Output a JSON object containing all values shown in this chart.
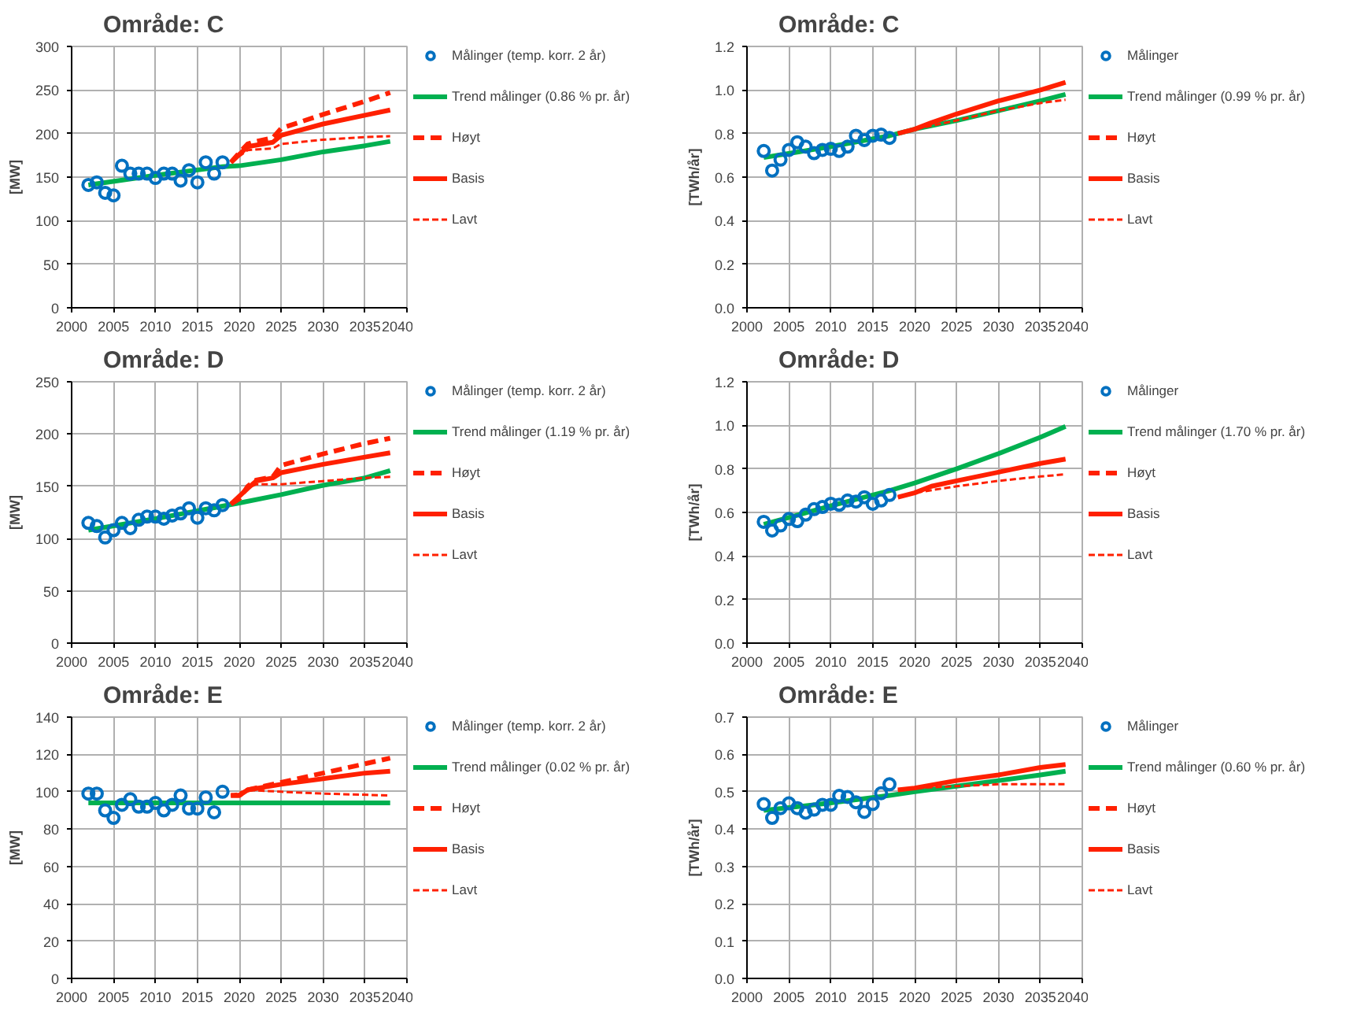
{
  "chart_data": [
    {
      "type": "line",
      "title": "Område: C",
      "ylabel": "[MW]",
      "xlim": [
        2000,
        2040
      ],
      "xticks": [
        2000,
        2005,
        2010,
        2015,
        2020,
        2025,
        2030,
        2035,
        2040
      ],
      "ylim": [
        0,
        300
      ],
      "yticks": [
        0,
        50,
        100,
        150,
        200,
        250,
        300
      ],
      "grid": true,
      "legend": "right",
      "series": [
        {
          "name": "Målinger (temp. korr. 2 år)",
          "type": "scatter",
          "marker": "circle",
          "color": "#0070c0",
          "x": [
            2002,
            2003,
            2004,
            2005,
            2006,
            2007,
            2008,
            2009,
            2010,
            2011,
            2012,
            2013,
            2014,
            2015,
            2016,
            2017,
            2018
          ],
          "values": [
            141,
            144,
            132,
            129,
            163,
            154,
            154,
            154,
            149,
            154,
            154,
            146,
            158,
            144,
            167,
            154,
            167
          ]
        },
        {
          "name": "Trend målinger (0.86 % pr. år)",
          "line_style": "solid",
          "color": "#00b050",
          "x": [
            2002,
            2010,
            2018,
            2020,
            2025,
            2030,
            2035,
            2038
          ],
          "values": [
            141,
            152,
            162,
            163,
            170,
            179,
            186,
            191
          ]
        },
        {
          "name": "Høyt",
          "line_style": "dashed",
          "color": "#ff2000",
          "x": [
            2019,
            2020,
            2021,
            2022,
            2024,
            2025,
            2030,
            2035,
            2038
          ],
          "values": [
            167,
            178,
            188,
            191,
            195,
            206,
            222,
            237,
            247
          ]
        },
        {
          "name": "Basis",
          "line_style": "solid",
          "color": "#ff2000",
          "x": [
            2019,
            2021,
            2024,
            2025,
            2030,
            2035,
            2038
          ],
          "values": [
            167,
            185,
            190,
            198,
            211,
            221,
            227
          ]
        },
        {
          "name": "Lavt",
          "line_style": "dotted",
          "color": "#ff2000",
          "x": [
            2019,
            2021,
            2024,
            2025,
            2030,
            2035,
            2038
          ],
          "values": [
            167,
            181,
            183,
            188,
            193,
            196,
            197
          ]
        }
      ]
    },
    {
      "type": "line",
      "title": "Område: C",
      "ylabel": "[TWh/år]",
      "xlim": [
        2000,
        2040
      ],
      "xticks": [
        2000,
        2005,
        2010,
        2015,
        2020,
        2025,
        2030,
        2035,
        2040
      ],
      "ylim": [
        0,
        1.2
      ],
      "yticks": [
        {
          "value": 0,
          "label": "0.0"
        },
        {
          "value": 0.2,
          "label": "0.2"
        },
        {
          "value": 0.4,
          "label": "0.4"
        },
        {
          "value": 0.6,
          "label": "0.6"
        },
        {
          "value": 0.8,
          "label": "0.8"
        },
        {
          "value": 1,
          "label": "1.0"
        },
        {
          "value": 1.2,
          "label": "1.2"
        }
      ],
      "grid": true,
      "legend": "right",
      "series": [
        {
          "name": "Målinger",
          "type": "scatter",
          "marker": "circle",
          "color": "#0070c0",
          "x": [
            2002,
            2003,
            2004,
            2005,
            2006,
            2007,
            2008,
            2009,
            2010,
            2011,
            2012,
            2013,
            2014,
            2015,
            2016,
            2017
          ],
          "values": [
            0.72,
            0.63,
            0.68,
            0.725,
            0.76,
            0.74,
            0.71,
            0.725,
            0.73,
            0.72,
            0.74,
            0.79,
            0.77,
            0.79,
            0.795,
            0.78
          ]
        },
        {
          "name": "Trend målinger (0.99 % pr. år)",
          "line_style": "solid",
          "color": "#00b050",
          "x": [
            2002,
            2010,
            2017,
            2020,
            2025,
            2030,
            2035,
            2038
          ],
          "values": [
            0.69,
            0.74,
            0.79,
            0.82,
            0.86,
            0.905,
            0.95,
            0.98
          ]
        },
        {
          "name": "Høyt",
          "line_style": "dashed",
          "color": "#ff2000"
        },
        {
          "name": "Basis",
          "line_style": "solid",
          "color": "#ff2000",
          "x": [
            2018,
            2020,
            2022,
            2025,
            2030,
            2035,
            2038
          ],
          "values": [
            0.8,
            0.82,
            0.85,
            0.89,
            0.95,
            1.0,
            1.035
          ]
        },
        {
          "name": "Lavt",
          "line_style": "dotted",
          "color": "#ff2000",
          "x": [
            2018,
            2020,
            2025,
            2030,
            2035,
            2038
          ],
          "values": [
            0.8,
            0.82,
            0.86,
            0.905,
            0.94,
            0.955
          ]
        }
      ]
    },
    {
      "type": "line",
      "title": "Område: D",
      "ylabel": "[MW]",
      "xlim": [
        2000,
        2040
      ],
      "xticks": [
        2000,
        2005,
        2010,
        2015,
        2020,
        2025,
        2030,
        2035,
        2040
      ],
      "ylim": [
        0,
        250
      ],
      "yticks": [
        0,
        50,
        100,
        150,
        200,
        250
      ],
      "grid": true,
      "legend": "right",
      "series": [
        {
          "name": "Målinger (temp. korr. 2 år)",
          "type": "scatter",
          "marker": "circle",
          "color": "#0070c0",
          "x": [
            2002,
            2003,
            2004,
            2005,
            2006,
            2007,
            2008,
            2009,
            2010,
            2011,
            2012,
            2013,
            2014,
            2015,
            2016,
            2017,
            2018
          ],
          "values": [
            115,
            112,
            101,
            108,
            115,
            110,
            118,
            121,
            121,
            119,
            122,
            124,
            129,
            120,
            129,
            127,
            132
          ]
        },
        {
          "name": "Trend målinger (1.19 % pr. år)",
          "line_style": "solid",
          "color": "#00b050",
          "x": [
            2002,
            2010,
            2018,
            2020,
            2025,
            2030,
            2035,
            2038
          ],
          "values": [
            108,
            119,
            131,
            134,
            142,
            151,
            158,
            165
          ]
        },
        {
          "name": "Høyt",
          "line_style": "dashed",
          "color": "#ff2000",
          "x": [
            2019,
            2020,
            2021,
            2022,
            2024,
            2025,
            2030,
            2035,
            2038
          ],
          "values": [
            133,
            138,
            150,
            156,
            159,
            170,
            181,
            191,
            196
          ]
        },
        {
          "name": "Basis",
          "line_style": "solid",
          "color": "#ff2000",
          "x": [
            2019,
            2021,
            2022,
            2024,
            2025,
            2030,
            2035,
            2038
          ],
          "values": [
            133,
            148,
            155,
            158,
            163,
            171,
            178,
            182
          ]
        },
        {
          "name": "Lavt",
          "line_style": "dotted",
          "color": "#ff2000",
          "x": [
            2019,
            2021,
            2022,
            2025,
            2030,
            2035,
            2038
          ],
          "values": [
            133,
            148,
            152,
            152,
            155,
            158,
            159
          ]
        }
      ]
    },
    {
      "type": "line",
      "title": "Område: D",
      "ylabel": "[TWh/år]",
      "xlim": [
        2000,
        2040
      ],
      "xticks": [
        2000,
        2005,
        2010,
        2015,
        2020,
        2025,
        2030,
        2035,
        2040
      ],
      "ylim": [
        0,
        1.2
      ],
      "yticks": [
        {
          "value": 0,
          "label": "0.0"
        },
        {
          "value": 0.2,
          "label": "0.2"
        },
        {
          "value": 0.4,
          "label": "0.4"
        },
        {
          "value": 0.6,
          "label": "0.6"
        },
        {
          "value": 0.8,
          "label": "0.8"
        },
        {
          "value": 1,
          "label": "1.0"
        },
        {
          "value": 1.2,
          "label": "1.2"
        }
      ],
      "grid": true,
      "legend": "right",
      "series": [
        {
          "name": "Målinger",
          "type": "scatter",
          "marker": "circle",
          "color": "#0070c0",
          "x": [
            2002,
            2003,
            2004,
            2005,
            2006,
            2007,
            2008,
            2009,
            2010,
            2011,
            2012,
            2013,
            2014,
            2015,
            2016,
            2017
          ],
          "values": [
            0.557,
            0.517,
            0.54,
            0.57,
            0.56,
            0.59,
            0.615,
            0.625,
            0.64,
            0.635,
            0.655,
            0.65,
            0.67,
            0.64,
            0.655,
            0.68
          ]
        },
        {
          "name": "Trend målinger (1.70 % pr. år)",
          "line_style": "solid",
          "color": "#00b050",
          "x": [
            2002,
            2010,
            2017,
            2020,
            2025,
            2030,
            2035,
            2038
          ],
          "values": [
            0.545,
            0.63,
            0.7,
            0.735,
            0.8,
            0.87,
            0.945,
            0.995
          ]
        },
        {
          "name": "Høyt",
          "line_style": "dashed",
          "color": "#ff2000"
        },
        {
          "name": "Basis",
          "line_style": "solid",
          "color": "#ff2000",
          "x": [
            2018,
            2020,
            2022,
            2025,
            2030,
            2035,
            2038
          ],
          "values": [
            0.67,
            0.69,
            0.72,
            0.745,
            0.785,
            0.825,
            0.845
          ]
        },
        {
          "name": "Lavt",
          "line_style": "dotted",
          "color": "#ff2000",
          "x": [
            2018,
            2020,
            2025,
            2030,
            2035,
            2038
          ],
          "values": [
            0.67,
            0.69,
            0.72,
            0.745,
            0.765,
            0.775
          ]
        }
      ]
    },
    {
      "type": "line",
      "title": "Område: E",
      "ylabel": "[MW]",
      "xlim": [
        2000,
        2040
      ],
      "xticks": [
        2000,
        2005,
        2010,
        2015,
        2020,
        2025,
        2030,
        2035,
        2040
      ],
      "ylim": [
        0,
        140
      ],
      "yticks": [
        0,
        20,
        40,
        60,
        80,
        100,
        120,
        140
      ],
      "grid": true,
      "legend": "right",
      "series": [
        {
          "name": "Målinger (temp. korr. 2 år)",
          "type": "scatter",
          "marker": "circle",
          "color": "#0070c0",
          "x": [
            2002,
            2003,
            2004,
            2005,
            2006,
            2007,
            2008,
            2009,
            2010,
            2011,
            2012,
            2013,
            2014,
            2015,
            2016,
            2017,
            2018
          ],
          "values": [
            99,
            99,
            90,
            86,
            93,
            96,
            92,
            92,
            94,
            90,
            93,
            98,
            91,
            91,
            97,
            89,
            100
          ]
        },
        {
          "name": "Trend målinger (0.02 % pr. år)",
          "line_style": "solid",
          "color": "#00b050",
          "x": [
            2002,
            2020,
            2038
          ],
          "values": [
            94,
            94,
            94
          ]
        },
        {
          "name": "Høyt",
          "line_style": "dashed",
          "color": "#ff2000",
          "x": [
            2019,
            2020,
            2021,
            2025,
            2030,
            2035,
            2038
          ],
          "values": [
            98,
            98,
            101,
            105,
            110,
            115,
            118
          ]
        },
        {
          "name": "Basis",
          "line_style": "solid",
          "color": "#ff2000",
          "x": [
            2019,
            2020,
            2021,
            2025,
            2030,
            2035,
            2038
          ],
          "values": [
            98,
            98,
            101,
            104,
            107,
            110,
            111
          ]
        },
        {
          "name": "Lavt",
          "line_style": "dotted",
          "color": "#ff2000",
          "x": [
            2019,
            2021,
            2025,
            2030,
            2038
          ],
          "values": [
            98,
            101,
            100,
            99,
            98
          ]
        }
      ]
    },
    {
      "type": "line",
      "title": "Område: E",
      "ylabel": "[TWh/år]",
      "xlim": [
        2000,
        2040
      ],
      "xticks": [
        2000,
        2005,
        2010,
        2015,
        2020,
        2025,
        2030,
        2035,
        2040
      ],
      "ylim": [
        0,
        0.7
      ],
      "yticks": [
        {
          "value": 0,
          "label": "0.0"
        },
        {
          "value": 0.1,
          "label": "0.1"
        },
        {
          "value": 0.2,
          "label": "0.2"
        },
        {
          "value": 0.3,
          "label": "0.3"
        },
        {
          "value": 0.4,
          "label": "0.4"
        },
        {
          "value": 0.5,
          "label": "0.5"
        },
        {
          "value": 0.6,
          "label": "0.6"
        },
        {
          "value": 0.7,
          "label": "0.7"
        }
      ],
      "grid": true,
      "legend": "right",
      "series": [
        {
          "name": "Målinger",
          "type": "scatter",
          "marker": "circle",
          "color": "#0070c0",
          "x": [
            2002,
            2003,
            2004,
            2005,
            2006,
            2007,
            2008,
            2009,
            2010,
            2011,
            2012,
            2013,
            2014,
            2015,
            2016,
            2017
          ],
          "values": [
            0.467,
            0.43,
            0.456,
            0.469,
            0.456,
            0.444,
            0.452,
            0.465,
            0.465,
            0.489,
            0.486,
            0.472,
            0.446,
            0.467,
            0.496,
            0.52
          ]
        },
        {
          "name": "Trend målinger (0.60 % pr. år)",
          "line_style": "solid",
          "color": "#00b050",
          "x": [
            2002,
            2010,
            2017,
            2020,
            2025,
            2030,
            2035,
            2038
          ],
          "values": [
            0.45,
            0.47,
            0.49,
            0.5,
            0.515,
            0.53,
            0.545,
            0.555
          ]
        },
        {
          "name": "Høyt",
          "line_style": "dashed",
          "color": "#ff2000"
        },
        {
          "name": "Basis",
          "line_style": "solid",
          "color": "#ff2000",
          "x": [
            2018,
            2020,
            2025,
            2030,
            2035,
            2038
          ],
          "values": [
            0.505,
            0.51,
            0.53,
            0.545,
            0.565,
            0.573
          ]
        },
        {
          "name": "Lavt",
          "line_style": "dotted",
          "color": "#ff2000",
          "x": [
            2018,
            2020,
            2025,
            2030,
            2038
          ],
          "values": [
            0.505,
            0.51,
            0.515,
            0.52,
            0.52
          ]
        }
      ]
    }
  ]
}
